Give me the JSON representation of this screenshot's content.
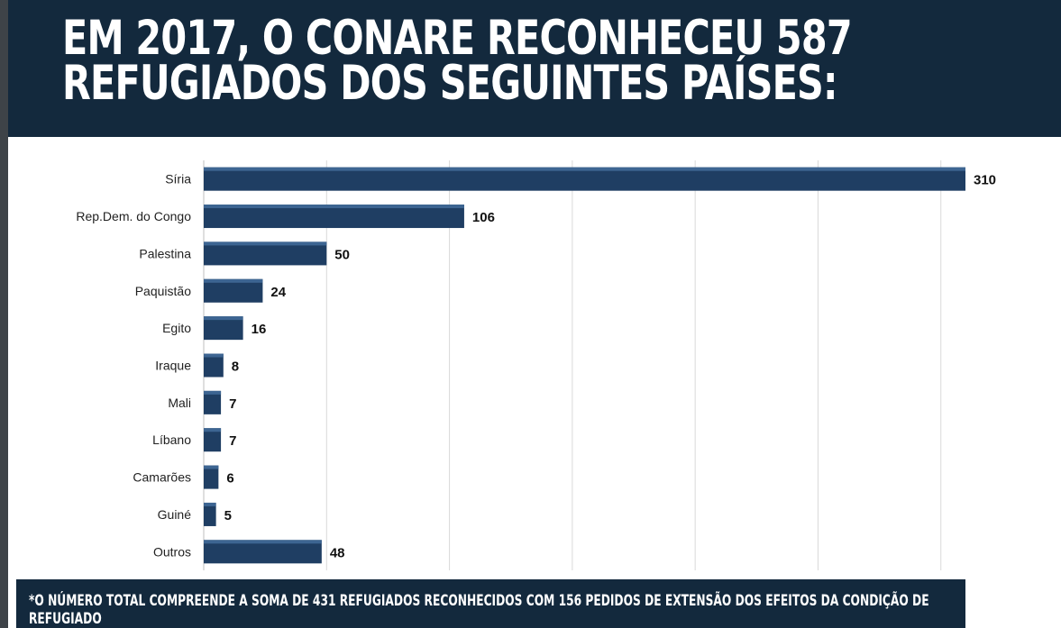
{
  "header": {
    "title": "EM 2017, O CONARE RECONHECEU 587 REFUGIADOS DOS SEGUINTES PAÍSES:"
  },
  "chart_data": {
    "type": "bar",
    "orientation": "horizontal",
    "categories": [
      "Síria",
      "Rep.Dem. do Congo",
      "Palestina",
      "Paquistão",
      "Egito",
      "Iraque",
      "Mali",
      "Líbano",
      "Camarões",
      "Guiné",
      "Outros"
    ],
    "values": [
      310,
      106,
      50,
      24,
      16,
      8,
      7,
      7,
      6,
      5,
      48
    ],
    "value_labels": [
      "310",
      "106",
      "50",
      "24",
      "16",
      "8",
      "7",
      "7",
      "6",
      "5",
      "48"
    ],
    "title": "",
    "xlabel": "",
    "ylabel": "",
    "xlim": [
      0,
      350
    ],
    "grid": true,
    "bar_color": "#1f3e63"
  },
  "footer": {
    "footnote": "*O NÚMERO TOTAL COMPREENDE A SOMA DE 431 REFUGIADOS RECONHECIDOS COM 156 PEDIDOS DE EXTENSÃO DOS EFEITOS DA CONDIÇÃO DE REFUGIADO"
  },
  "colors": {
    "header_bg": "#13293d",
    "bar": "#1f3e63",
    "grid": "#d9d9d9"
  }
}
